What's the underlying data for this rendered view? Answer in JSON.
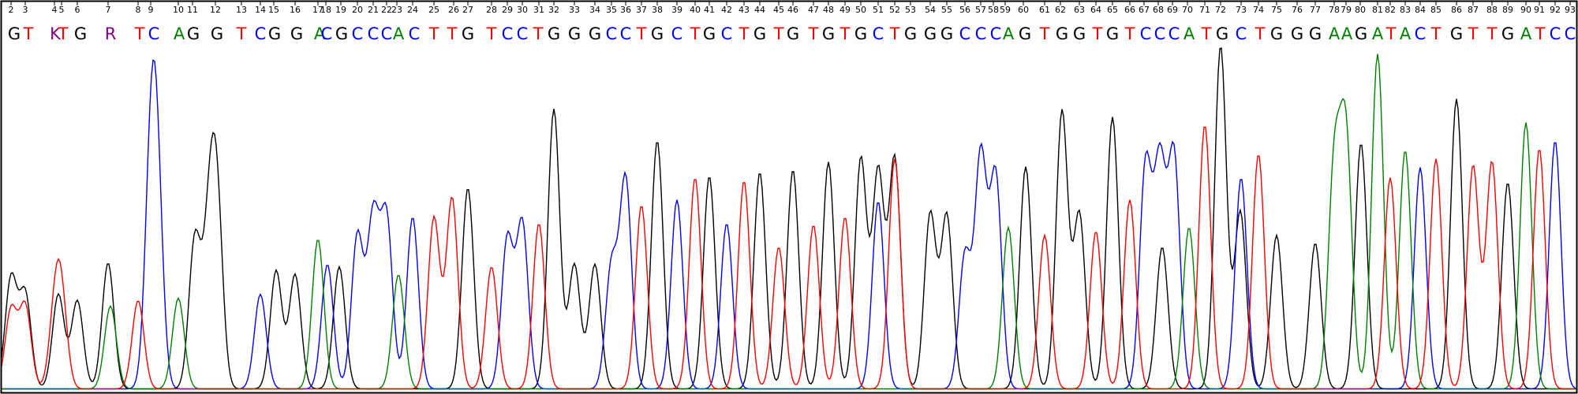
{
  "chart_data": {
    "type": "line",
    "title": "",
    "xlabel": "",
    "ylabel": "",
    "grid": false,
    "legend": "none",
    "colors": {
      "A": "#008000",
      "C": "#0000ff",
      "G": "#000000",
      "T": "#ff0000",
      "ambiguous": "#800080",
      "frame": "#000000"
    },
    "x_range": [
      0,
      2000
    ],
    "y_range": [
      0,
      440
    ],
    "position_labels": [
      "2",
      "3",
      "4",
      "5",
      "6",
      "7",
      "8",
      "9",
      "10",
      "11",
      "12",
      "13",
      "14",
      "15",
      "16",
      "17",
      "18",
      "19",
      "20",
      "21",
      "22",
      "23",
      "24",
      "25",
      "26",
      "27",
      "28",
      "29",
      "30",
      "31",
      "32",
      "33",
      "34",
      "35",
      "36",
      "37",
      "38",
      "39",
      "40",
      "41",
      "42",
      "43",
      "44",
      "45",
      "46",
      "47",
      "48",
      "49",
      "50",
      "51",
      "52",
      "53",
      "54",
      "55",
      "56",
      "57",
      "58",
      "59",
      "60",
      "61",
      "62",
      "63",
      "64",
      "65",
      "66",
      "67",
      "68",
      "69",
      "70",
      "71",
      "72",
      "73",
      "74",
      "75",
      "76",
      "77",
      "78",
      "79",
      "80",
      "81",
      "82",
      "83",
      "84",
      "85",
      "86",
      "87",
      "88",
      "89",
      "90",
      "91",
      "92",
      "93"
    ],
    "position_x": [
      14,
      32,
      69,
      78,
      98,
      137,
      175,
      191,
      226,
      244,
      273,
      306,
      330,
      347,
      374,
      403,
      413,
      432,
      453,
      473,
      490,
      503,
      523,
      550,
      575,
      593,
      623,
      643,
      662,
      683,
      702,
      728,
      754,
      775,
      793,
      813,
      833,
      858,
      881,
      899,
      921,
      943,
      963,
      987,
      1005,
      1031,
      1050,
      1071,
      1091,
      1113,
      1134,
      1154,
      1179,
      1200,
      1223,
      1243,
      1259,
      1274,
      1297,
      1324,
      1344,
      1368,
      1389,
      1410,
      1432,
      1450,
      1468,
      1486,
      1505,
      1527,
      1547,
      1573,
      1595,
      1618,
      1644,
      1667,
      1691,
      1706,
      1724,
      1746,
      1762,
      1781,
      1800,
      1820,
      1846,
      1867,
      1891,
      1911,
      1934,
      1951,
      1971,
      1990
    ],
    "base_calls": [
      {
        "base": "G",
        "x": 18
      },
      {
        "base": "T",
        "x": 36
      },
      {
        "base": "K",
        "x": 70
      },
      {
        "base": "T",
        "x": 80
      },
      {
        "base": "G",
        "x": 102
      },
      {
        "base": "R",
        "x": 140
      },
      {
        "base": "T",
        "x": 177
      },
      {
        "base": "C",
        "x": 195
      },
      {
        "base": "A",
        "x": 227
      },
      {
        "base": "G",
        "x": 245
      },
      {
        "base": "G",
        "x": 275
      },
      {
        "base": "T",
        "x": 306
      },
      {
        "base": "C",
        "x": 330
      },
      {
        "base": "G",
        "x": 348
      },
      {
        "base": "G",
        "x": 376
      },
      {
        "base": "A",
        "x": 405
      },
      {
        "base": "C",
        "x": 414
      },
      {
        "base": "G",
        "x": 433
      },
      {
        "base": "C",
        "x": 453
      },
      {
        "base": "C",
        "x": 473
      },
      {
        "base": "C",
        "x": 490
      },
      {
        "base": "A",
        "x": 505
      },
      {
        "base": "C",
        "x": 525
      },
      {
        "base": "T",
        "x": 550
      },
      {
        "base": "T",
        "x": 573
      },
      {
        "base": "G",
        "x": 593
      },
      {
        "base": "T",
        "x": 623
      },
      {
        "base": "C",
        "x": 643
      },
      {
        "base": "C",
        "x": 662
      },
      {
        "base": "T",
        "x": 682
      },
      {
        "base": "G",
        "x": 702
      },
      {
        "base": "G",
        "x": 728
      },
      {
        "base": "G",
        "x": 754
      },
      {
        "base": "C",
        "x": 775
      },
      {
        "base": "C",
        "x": 793
      },
      {
        "base": "T",
        "x": 813
      },
      {
        "base": "G",
        "x": 833
      },
      {
        "base": "C",
        "x": 858
      },
      {
        "base": "T",
        "x": 881
      },
      {
        "base": "G",
        "x": 899
      },
      {
        "base": "C",
        "x": 921
      },
      {
        "base": "T",
        "x": 943
      },
      {
        "base": "G",
        "x": 963
      },
      {
        "base": "T",
        "x": 987
      },
      {
        "base": "G",
        "x": 1005
      },
      {
        "base": "T",
        "x": 1031
      },
      {
        "base": "G",
        "x": 1050
      },
      {
        "base": "T",
        "x": 1071
      },
      {
        "base": "G",
        "x": 1091
      },
      {
        "base": "C",
        "x": 1113
      },
      {
        "base": "T",
        "x": 1134
      },
      {
        "base": "G",
        "x": 1154
      },
      {
        "base": "G",
        "x": 1179
      },
      {
        "base": "G",
        "x": 1200
      },
      {
        "base": "C",
        "x": 1223
      },
      {
        "base": "C",
        "x": 1243
      },
      {
        "base": "C",
        "x": 1262
      },
      {
        "base": "A",
        "x": 1278
      },
      {
        "base": "G",
        "x": 1299
      },
      {
        "base": "T",
        "x": 1324
      },
      {
        "base": "G",
        "x": 1346
      },
      {
        "base": "G",
        "x": 1368
      },
      {
        "base": "T",
        "x": 1391
      },
      {
        "base": "G",
        "x": 1410
      },
      {
        "base": "T",
        "x": 1432
      },
      {
        "base": "C",
        "x": 1452
      },
      {
        "base": "C",
        "x": 1470
      },
      {
        "base": "C",
        "x": 1488
      },
      {
        "base": "A",
        "x": 1507
      },
      {
        "base": "T",
        "x": 1529
      },
      {
        "base": "G",
        "x": 1549
      },
      {
        "base": "C",
        "x": 1573
      },
      {
        "base": "T",
        "x": 1597
      },
      {
        "base": "G",
        "x": 1618
      },
      {
        "base": "G",
        "x": 1644
      },
      {
        "base": "G",
        "x": 1667
      },
      {
        "base": "A",
        "x": 1691
      },
      {
        "base": "A",
        "x": 1707
      },
      {
        "base": "G",
        "x": 1725
      },
      {
        "base": "A",
        "x": 1746
      },
      {
        "base": "T",
        "x": 1763
      },
      {
        "base": "A",
        "x": 1781
      },
      {
        "base": "C",
        "x": 1800
      },
      {
        "base": "T",
        "x": 1820
      },
      {
        "base": "G",
        "x": 1846
      },
      {
        "base": "T",
        "x": 1867
      },
      {
        "base": "T",
        "x": 1891
      },
      {
        "base": "G",
        "x": 1911
      },
      {
        "base": "A",
        "x": 1934
      },
      {
        "base": "T",
        "x": 1952
      },
      {
        "base": "C",
        "x": 1971
      },
      {
        "base": "C",
        "x": 1990
      }
    ],
    "series": [
      {
        "channel": "G",
        "peaks": [
          [
            14,
            140
          ],
          [
            32,
            120
          ],
          [
            74,
            120
          ],
          [
            98,
            112
          ],
          [
            137,
            160
          ],
          [
            247,
            190
          ],
          [
            265,
            182
          ],
          [
            275,
            222
          ],
          [
            350,
            150
          ],
          [
            374,
            145
          ],
          [
            430,
            155
          ],
          [
            593,
            255
          ],
          [
            702,
            355
          ],
          [
            728,
            158
          ],
          [
            754,
            158
          ],
          [
            833,
            315
          ],
          [
            899,
            270
          ],
          [
            963,
            275
          ],
          [
            1005,
            278
          ],
          [
            1050,
            288
          ],
          [
            1091,
            292
          ],
          [
            1113,
            275
          ],
          [
            1134,
            292
          ],
          [
            1179,
            222
          ],
          [
            1200,
            220
          ],
          [
            1300,
            282
          ],
          [
            1346,
            352
          ],
          [
            1368,
            222
          ],
          [
            1410,
            345
          ],
          [
            1473,
            180
          ],
          [
            1547,
            435
          ],
          [
            1572,
            225
          ],
          [
            1618,
            195
          ],
          [
            1667,
            185
          ],
          [
            1725,
            312
          ],
          [
            1846,
            368
          ],
          [
            1911,
            262
          ]
        ]
      },
      {
        "channel": "C",
        "peaks": [
          [
            191,
            248
          ],
          [
            199,
            235
          ],
          [
            330,
            120
          ],
          [
            415,
            158
          ],
          [
            453,
            195
          ],
          [
            473,
            215
          ],
          [
            490,
            215
          ],
          [
            523,
            218
          ],
          [
            643,
            190
          ],
          [
            662,
            210
          ],
          [
            775,
            155
          ],
          [
            793,
            265
          ],
          [
            858,
            240
          ],
          [
            921,
            210
          ],
          [
            1113,
            238
          ],
          [
            1223,
            170
          ],
          [
            1243,
            295
          ],
          [
            1262,
            270
          ],
          [
            1452,
            283
          ],
          [
            1470,
            280
          ],
          [
            1488,
            295
          ],
          [
            1573,
            268
          ],
          [
            1800,
            281
          ],
          [
            1971,
            315
          ]
        ]
      },
      {
        "channel": "A",
        "peaks": [
          [
            140,
            105
          ],
          [
            226,
            115
          ],
          [
            403,
            190
          ],
          [
            505,
            145
          ],
          [
            1278,
            205
          ],
          [
            1507,
            205
          ],
          [
            1691,
            278
          ],
          [
            1706,
            315
          ],
          [
            1746,
            425
          ],
          [
            1781,
            303
          ],
          [
            1934,
            338
          ]
        ]
      },
      {
        "channel": "T",
        "peaks": [
          [
            14,
            100
          ],
          [
            32,
            105
          ],
          [
            70,
            92
          ],
          [
            78,
            98
          ],
          [
            175,
            112
          ],
          [
            550,
            217
          ],
          [
            573,
            242
          ],
          [
            623,
            155
          ],
          [
            683,
            210
          ],
          [
            813,
            233
          ],
          [
            881,
            268
          ],
          [
            943,
            264
          ],
          [
            987,
            180
          ],
          [
            1031,
            208
          ],
          [
            1071,
            218
          ],
          [
            1134,
            292
          ],
          [
            1324,
            195
          ],
          [
            1389,
            200
          ],
          [
            1432,
            240
          ],
          [
            1527,
            335
          ],
          [
            1595,
            298
          ],
          [
            1762,
            268
          ],
          [
            1820,
            292
          ],
          [
            1867,
            283
          ],
          [
            1891,
            288
          ],
          [
            1951,
            305
          ]
        ]
      }
    ]
  }
}
